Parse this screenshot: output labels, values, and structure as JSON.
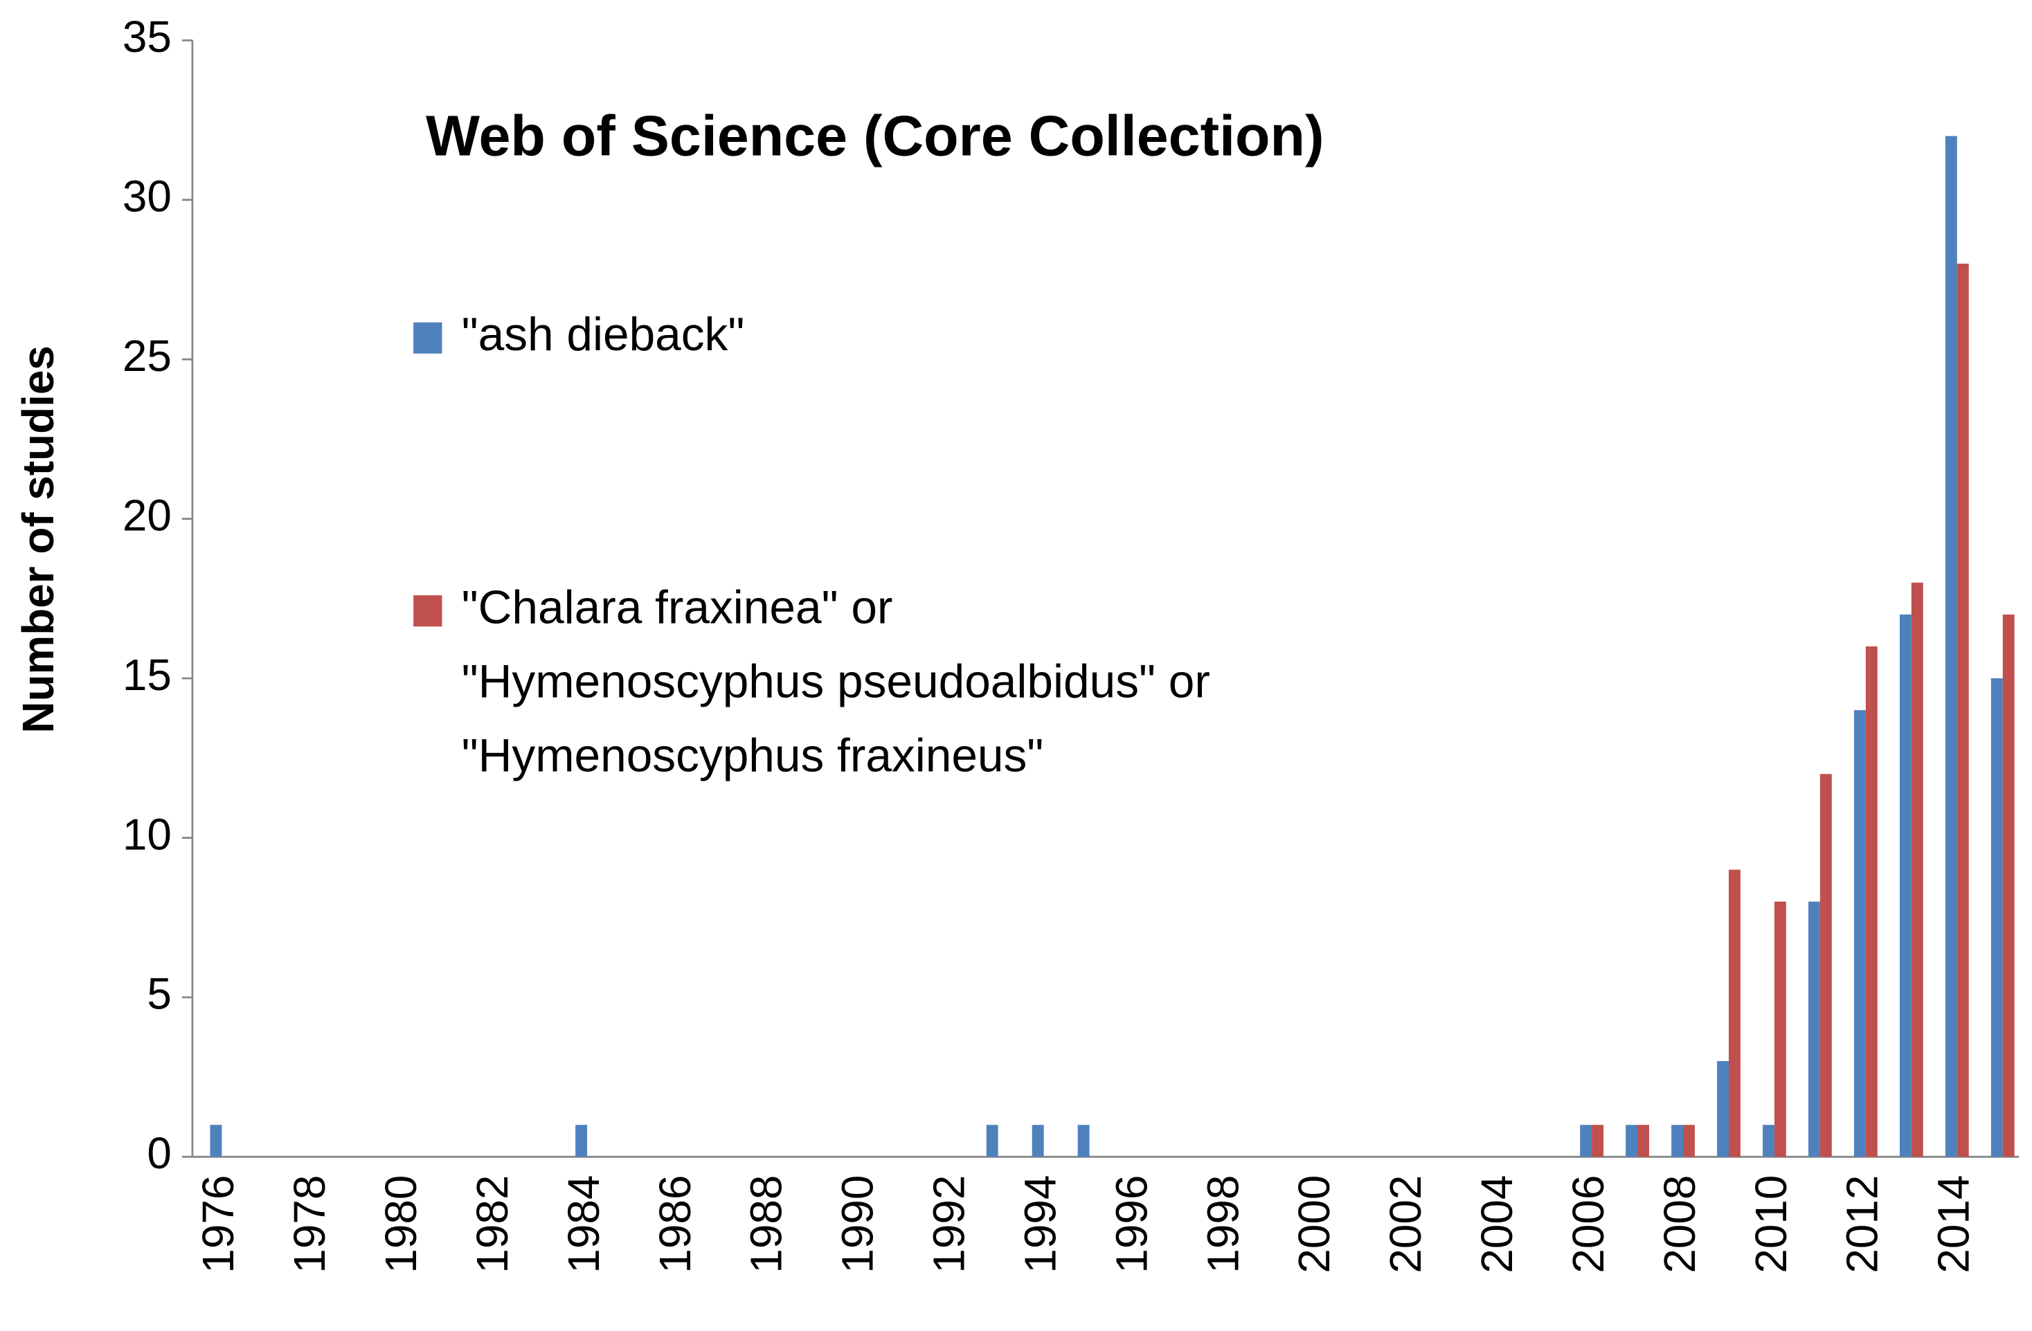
{
  "chart_data": {
    "type": "bar",
    "title": "Web of Science (Core Collection)",
    "y_axis_label": "Number of studies",
    "categories": [
      "1976",
      null,
      "1978",
      null,
      "1980",
      null,
      "1982",
      null,
      "1984",
      null,
      "1986",
      null,
      "1988",
      null,
      "1990",
      null,
      "1992",
      null,
      "1994",
      null,
      "1996",
      null,
      "1998",
      null,
      "2000",
      null,
      "2002",
      null,
      "2004",
      null,
      "2006",
      null,
      "2008",
      null,
      "2010",
      null,
      "2012",
      null,
      "2014",
      null
    ],
    "series": [
      {
        "name": "\"ash dieback\"",
        "color": "#4f81bd",
        "values": [
          1,
          0,
          0,
          0,
          0,
          0,
          0,
          0,
          1,
          0,
          0,
          0,
          0,
          0,
          0,
          0,
          0,
          1,
          1,
          1,
          0,
          0,
          0,
          0,
          0,
          0,
          0,
          0,
          0,
          0,
          1,
          1,
          1,
          3,
          1,
          8,
          14,
          17,
          32,
          15
        ]
      },
      {
        "name": "\"Chalara fraxinea\" or\n\"Hymenoscyphus pseudoalbidus\" or\n\"Hymenoscyphus fraxineus\"",
        "color": "#c0504d",
        "values": [
          0,
          0,
          0,
          0,
          0,
          0,
          0,
          0,
          0,
          0,
          0,
          0,
          0,
          0,
          0,
          0,
          0,
          0,
          0,
          0,
          0,
          0,
          0,
          0,
          0,
          0,
          0,
          0,
          0,
          0,
          1,
          1,
          1,
          9,
          8,
          12,
          16,
          18,
          28,
          17
        ]
      }
    ],
    "ylim": [
      0,
      35
    ],
    "yticks": [
      0,
      5,
      10,
      15,
      20,
      25,
      30,
      35
    ],
    "grid": false,
    "legend": "upper left"
  }
}
